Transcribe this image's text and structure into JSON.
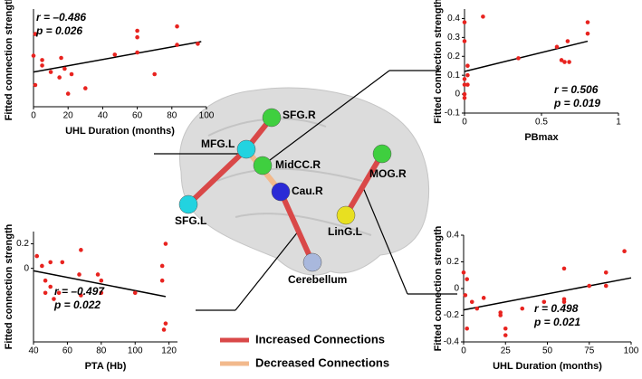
{
  "chart_data": [
    {
      "type": "scatter",
      "x_label": "UHL Duration (months)",
      "y_label": "Fitted connection strength",
      "annotations": [
        "r = –0.486",
        "p = 0.026"
      ],
      "color": "#e8231f",
      "x": [
        0,
        1,
        1,
        5,
        5,
        10,
        15,
        16,
        18,
        20,
        22,
        30,
        47,
        60,
        60,
        60,
        70,
        83,
        83,
        95
      ],
      "y": [
        -0.33,
        -0.13,
        -0.6,
        -0.37,
        -0.42,
        -0.48,
        -0.53,
        -0.35,
        -0.45,
        -0.68,
        -0.5,
        -0.63,
        -0.32,
        -0.1,
        -0.16,
        -0.3,
        -0.5,
        -0.06,
        -0.23,
        -0.22
      ],
      "fit": {
        "x": [
          0,
          97
        ],
        "y": [
          -0.48,
          -0.2
        ]
      },
      "xlim": [
        0,
        100
      ],
      "xticks": [
        0,
        20,
        40,
        60,
        80,
        100
      ],
      "ylim": [
        -0.8,
        0.1
      ]
    },
    {
      "type": "scatter",
      "x_label": "PBmax",
      "y_label": "Fitted connection strength",
      "annotations": [
        "r = 0.506",
        "p = 0.019"
      ],
      "color": "#e8231f",
      "x": [
        0,
        0,
        0,
        0,
        0,
        0,
        0.02,
        0.02,
        0.02,
        0.12,
        0.35,
        0.6,
        0.63,
        0.65,
        0.67,
        0.68,
        0.8,
        0.8
      ],
      "y": [
        0.38,
        0.28,
        0.08,
        0.05,
        0.0,
        -0.02,
        0.15,
        0.05,
        0.1,
        0.41,
        0.19,
        0.25,
        0.18,
        0.17,
        0.28,
        0.17,
        0.38,
        0.32
      ],
      "fit": {
        "x": [
          0,
          0.8
        ],
        "y": [
          0.12,
          0.28
        ]
      },
      "xlim": [
        0,
        1
      ],
      "xticks": [
        0,
        0.5,
        1
      ],
      "ylim": [
        -0.1,
        0.45
      ],
      "yticks": [
        -0.1,
        0,
        0.1,
        0.2,
        0.3,
        0.4
      ]
    },
    {
      "type": "scatter",
      "x_label": "PTA (Hb)",
      "y_label": "Fitted connection strength",
      "annotations": [
        "r = –0.497",
        "p = 0.022"
      ],
      "color": "#e8231f",
      "x": [
        42,
        45,
        47,
        47,
        50,
        50,
        52,
        55,
        57,
        67,
        68,
        68,
        78,
        80,
        80,
        100,
        116,
        116,
        117,
        118,
        118
      ],
      "y": [
        0.1,
        0.02,
        -0.1,
        -0.2,
        0.05,
        -0.15,
        -0.25,
        -0.2,
        0.05,
        -0.05,
        0.15,
        -0.22,
        -0.05,
        -0.1,
        -0.2,
        -0.2,
        0.02,
        -0.1,
        -0.5,
        -0.45,
        0.2
      ],
      "fit": {
        "x": [
          40,
          118
        ],
        "y": [
          -0.02,
          -0.23
        ]
      },
      "xlim": [
        40,
        125
      ],
      "xticks": [
        40,
        60,
        80,
        100,
        120
      ],
      "ylim": [
        -0.6,
        0.3
      ],
      "yticks": [
        0,
        0.2
      ]
    },
    {
      "type": "scatter",
      "x_label": "UHL Duration (months)",
      "y_label": "Fitted connection strength",
      "annotations": [
        "r = 0.498",
        "p = 0.021"
      ],
      "color": "#e8231f",
      "x": [
        0,
        1,
        2,
        2,
        5,
        8,
        12,
        22,
        22,
        25,
        25,
        35,
        48,
        60,
        60,
        60,
        75,
        85,
        85,
        96
      ],
      "y": [
        0.12,
        -0.05,
        0.07,
        -0.3,
        -0.1,
        -0.15,
        -0.07,
        -0.18,
        -0.2,
        -0.3,
        -0.35,
        -0.15,
        -0.1,
        0.15,
        -0.08,
        -0.1,
        0.02,
        0.12,
        0.02,
        0.28
      ],
      "fit": {
        "x": [
          0,
          100
        ],
        "y": [
          -0.16,
          0.08
        ]
      },
      "xlim": [
        0,
        100
      ],
      "xticks": [
        0,
        25,
        50,
        75,
        100
      ],
      "ylim": [
        -0.4,
        0.4
      ],
      "yticks": [
        -0.4,
        -0.2,
        0,
        0.2,
        0.4
      ]
    }
  ],
  "diagram": {
    "nodes": [
      {
        "label": "SFG.R",
        "color": "#3fcf3f"
      },
      {
        "label": "MFG.L",
        "color": "#22d3e0"
      },
      {
        "label": "MidCC.R",
        "color": "#3fcf3f"
      },
      {
        "label": "Cau.R",
        "color": "#2a2ad6"
      },
      {
        "label": "SFG.L",
        "color": "#22d3e0"
      },
      {
        "label": "Cerebellum",
        "color": "#a9b8dd"
      },
      {
        "label": "MOG.R",
        "color": "#3fcf3f"
      },
      {
        "label": "LinG.L",
        "color": "#e8e020"
      }
    ],
    "legend": [
      {
        "label": "Increased Connections",
        "color": "#d94848"
      },
      {
        "label": "Decreased Connections",
        "color": "#f2b98c"
      }
    ]
  }
}
